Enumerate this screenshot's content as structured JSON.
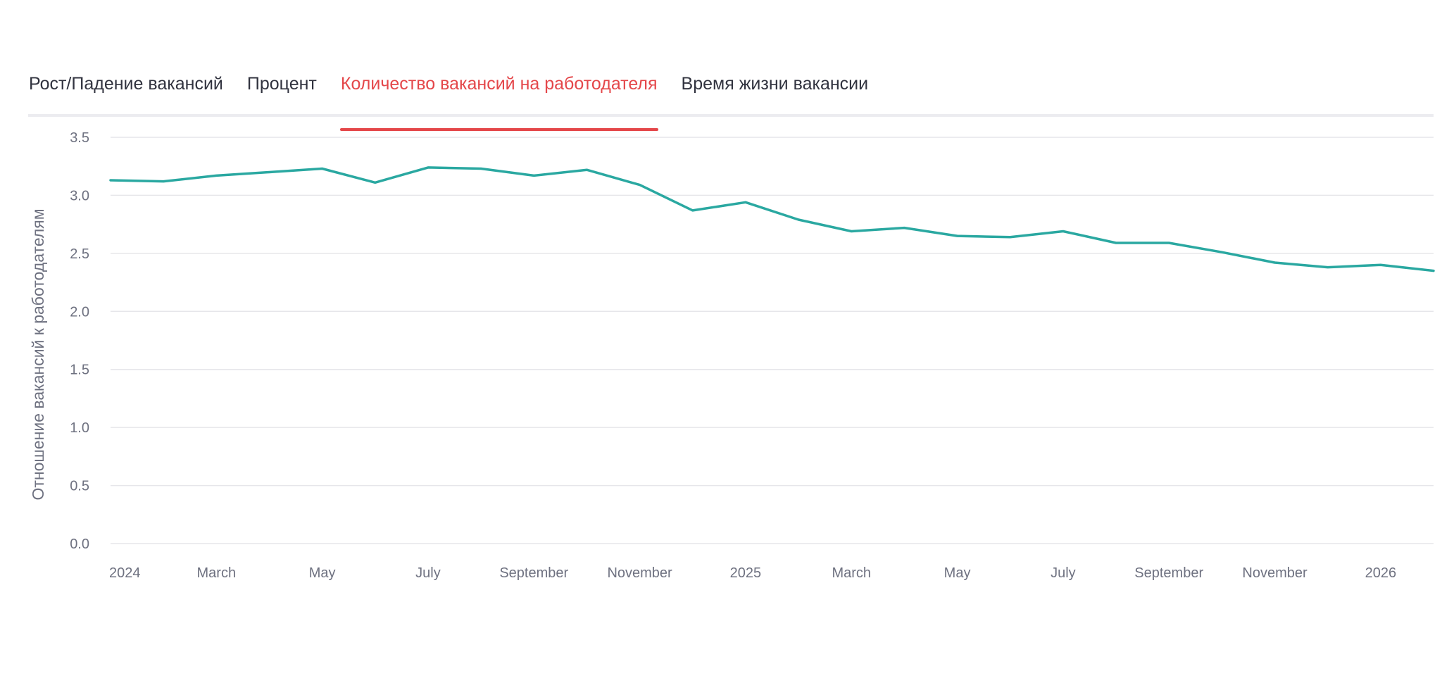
{
  "tabs": [
    {
      "label": "Рост/Падение вакансий",
      "active": false
    },
    {
      "label": "Процент",
      "active": false
    },
    {
      "label": "Количество вакансий на работодателя",
      "active": true
    },
    {
      "label": "Время жизни вакансии",
      "active": false
    }
  ],
  "colors": {
    "active_tab": "#e4474a",
    "series_line": "#2aa8a1",
    "gridline": "#e6e6ea",
    "tick_text": "#6e7180"
  },
  "chart_data": {
    "type": "line",
    "ylabel": "Отношение вакансий к работодателям",
    "ylim": [
      0,
      3.5
    ],
    "y_ticks": [
      "0.0",
      "0.5",
      "1.0",
      "1.5",
      "2.0",
      "2.5",
      "3.0",
      "3.5"
    ],
    "x_ticks": [
      {
        "label": "2024",
        "date": "2024-01"
      },
      {
        "label": "March",
        "date": "2024-03"
      },
      {
        "label": "May",
        "date": "2024-05"
      },
      {
        "label": "July",
        "date": "2024-07"
      },
      {
        "label": "September",
        "date": "2024-09"
      },
      {
        "label": "November",
        "date": "2024-11"
      },
      {
        "label": "2025",
        "date": "2025-01"
      },
      {
        "label": "March",
        "date": "2025-03"
      },
      {
        "label": "May",
        "date": "2025-05"
      },
      {
        "label": "July",
        "date": "2025-07"
      },
      {
        "label": "September",
        "date": "2025-09"
      },
      {
        "label": "November",
        "date": "2025-11"
      },
      {
        "label": "2026",
        "date": "2026-01"
      }
    ],
    "grid": true,
    "series": [
      {
        "x": [
          "2024-01",
          "2024-02",
          "2024-03",
          "2024-04",
          "2024-05",
          "2024-06",
          "2024-07",
          "2024-08",
          "2024-09",
          "2024-10",
          "2024-11",
          "2024-12",
          "2025-01",
          "2025-02",
          "2025-03",
          "2025-04",
          "2025-05",
          "2025-06",
          "2025-07",
          "2025-08",
          "2025-09",
          "2025-10",
          "2025-11",
          "2025-12",
          "2026-01",
          "2026-02"
        ],
        "values": [
          3.13,
          3.12,
          3.17,
          3.2,
          3.23,
          3.11,
          3.24,
          3.23,
          3.17,
          3.22,
          3.09,
          2.87,
          2.94,
          2.79,
          2.69,
          2.72,
          2.65,
          2.64,
          2.69,
          2.59,
          2.59,
          2.51,
          2.42,
          2.38,
          2.4,
          2.35
        ]
      }
    ]
  }
}
